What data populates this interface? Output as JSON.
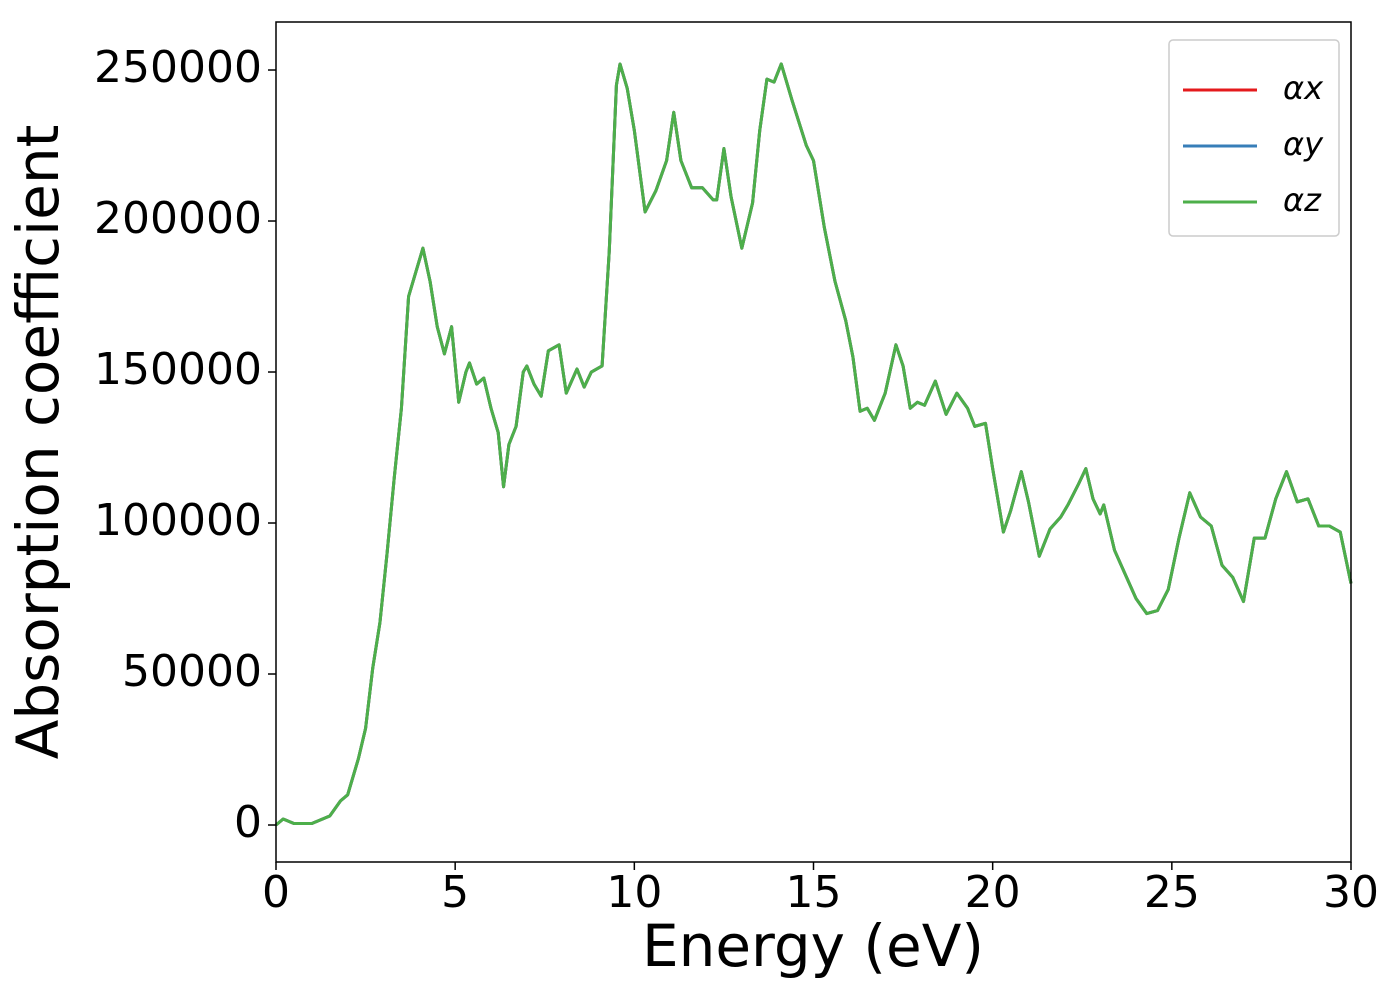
{
  "chart_data": {
    "type": "line",
    "xlabel": "Energy (eV)",
    "ylabel": "Absorption coefficient",
    "x": [
      0,
      0.2,
      0.5,
      1.0,
      1.5,
      1.8,
      2.0,
      2.3,
      2.5,
      2.7,
      2.9,
      3.1,
      3.3,
      3.5,
      3.7,
      3.9,
      4.1,
      4.3,
      4.5,
      4.7,
      4.9,
      5.1,
      5.3,
      5.4,
      5.6,
      5.8,
      6.0,
      6.2,
      6.35,
      6.5,
      6.7,
      6.9,
      7.0,
      7.2,
      7.4,
      7.6,
      7.9,
      8.1,
      8.4,
      8.6,
      8.8,
      9.1,
      9.3,
      9.5,
      9.6,
      9.8,
      10.0,
      10.3,
      10.6,
      10.9,
      11.1,
      11.3,
      11.6,
      11.9,
      12.2,
      12.3,
      12.5,
      12.7,
      13.0,
      13.3,
      13.5,
      13.7,
      13.9,
      14.1,
      14.4,
      14.8,
      15.0,
      15.3,
      15.6,
      15.9,
      16.1,
      16.3,
      16.5,
      16.7,
      17.0,
      17.3,
      17.5,
      17.7,
      17.9,
      18.1,
      18.4,
      18.7,
      19.0,
      19.3,
      19.5,
      19.8,
      20.0,
      20.3,
      20.5,
      20.8,
      21.0,
      21.3,
      21.6,
      21.9,
      22.1,
      22.4,
      22.6,
      22.8,
      23.0,
      23.1,
      23.4,
      23.7,
      24.0,
      24.3,
      24.6,
      24.9,
      25.2,
      25.5,
      25.8,
      26.1,
      26.4,
      26.7,
      27.0,
      27.3,
      27.6,
      27.9,
      28.2,
      28.5,
      28.8,
      29.1,
      29.4,
      29.7,
      30.0
    ],
    "series": [
      {
        "name": "αx",
        "color": "#e41a1c",
        "values": [
          0,
          2000,
          500,
          500,
          3000,
          8000,
          10000,
          22000,
          32000,
          52000,
          67000,
          90000,
          115000,
          138000,
          175000,
          183000,
          191000,
          180000,
          165000,
          156000,
          165000,
          140000,
          150000,
          153000,
          146000,
          148000,
          138000,
          130000,
          112000,
          126000,
          132000,
          150000,
          152000,
          146000,
          142000,
          157000,
          159000,
          143000,
          151000,
          145000,
          150000,
          152000,
          190000,
          245000,
          252000,
          244000,
          230000,
          203000,
          210000,
          220000,
          236000,
          220000,
          211000,
          211000,
          207000,
          207000,
          224000,
          208000,
          191000,
          206000,
          230000,
          247000,
          246000,
          252000,
          240000,
          225000,
          220000,
          198000,
          180000,
          167000,
          155000,
          137000,
          138000,
          134000,
          143000,
          159000,
          152000,
          138000,
          140000,
          139000,
          147000,
          136000,
          143000,
          138000,
          132000,
          133000,
          118000,
          97000,
          104000,
          117000,
          107000,
          89000,
          98000,
          102000,
          106000,
          113000,
          118000,
          108000,
          103000,
          106000,
          91000,
          83000,
          75000,
          70000,
          71000,
          78000,
          95000,
          110000,
          102000,
          99000,
          86000,
          82000,
          74000,
          95000,
          95000,
          108000,
          117000,
          107000,
          108000,
          99000,
          99000,
          97000,
          80000
        ]
      },
      {
        "name": "αy",
        "color": "#377eb8",
        "values": [
          0,
          2000,
          500,
          500,
          3000,
          8000,
          10000,
          22000,
          32000,
          52000,
          67000,
          90000,
          115000,
          138000,
          175000,
          183000,
          191000,
          180000,
          165000,
          156000,
          165000,
          140000,
          150000,
          153000,
          146000,
          148000,
          138000,
          130000,
          112000,
          126000,
          132000,
          150000,
          152000,
          146000,
          142000,
          157000,
          159000,
          143000,
          151000,
          145000,
          150000,
          152000,
          190000,
          245000,
          252000,
          244000,
          230000,
          203000,
          210000,
          220000,
          236000,
          220000,
          211000,
          211000,
          207000,
          207000,
          224000,
          208000,
          191000,
          206000,
          230000,
          247000,
          246000,
          252000,
          240000,
          225000,
          220000,
          198000,
          180000,
          167000,
          155000,
          137000,
          138000,
          134000,
          143000,
          159000,
          152000,
          138000,
          140000,
          139000,
          147000,
          136000,
          143000,
          138000,
          132000,
          133000,
          118000,
          97000,
          104000,
          117000,
          107000,
          89000,
          98000,
          102000,
          106000,
          113000,
          118000,
          108000,
          103000,
          106000,
          91000,
          83000,
          75000,
          70000,
          71000,
          78000,
          95000,
          110000,
          102000,
          99000,
          86000,
          82000,
          74000,
          95000,
          95000,
          108000,
          117000,
          107000,
          108000,
          99000,
          99000,
          97000,
          80000
        ]
      },
      {
        "name": "αz",
        "color": "#4daf4a",
        "values": [
          0,
          2000,
          500,
          500,
          3000,
          8000,
          10000,
          22000,
          32000,
          52000,
          67000,
          90000,
          115000,
          138000,
          175000,
          183000,
          191000,
          180000,
          165000,
          156000,
          165000,
          140000,
          150000,
          153000,
          146000,
          148000,
          138000,
          130000,
          112000,
          126000,
          132000,
          150000,
          152000,
          146000,
          142000,
          157000,
          159000,
          143000,
          151000,
          145000,
          150000,
          152000,
          190000,
          245000,
          252000,
          244000,
          230000,
          203000,
          210000,
          220000,
          236000,
          220000,
          211000,
          211000,
          207000,
          207000,
          224000,
          208000,
          191000,
          206000,
          230000,
          247000,
          246000,
          252000,
          240000,
          225000,
          220000,
          198000,
          180000,
          167000,
          155000,
          137000,
          138000,
          134000,
          143000,
          159000,
          152000,
          138000,
          140000,
          139000,
          147000,
          136000,
          143000,
          138000,
          132000,
          133000,
          118000,
          97000,
          104000,
          117000,
          107000,
          89000,
          98000,
          102000,
          106000,
          113000,
          118000,
          108000,
          103000,
          106000,
          91000,
          83000,
          75000,
          70000,
          71000,
          78000,
          95000,
          110000,
          102000,
          99000,
          86000,
          82000,
          74000,
          95000,
          95000,
          108000,
          117000,
          107000,
          108000,
          99000,
          99000,
          97000,
          80000
        ]
      }
    ],
    "xlim": [
      0,
      30
    ],
    "xticks": [
      0,
      5,
      10,
      15,
      20,
      25,
      30
    ],
    "ylim": [
      -12250,
      265900
    ],
    "yticks": [
      0,
      50000,
      100000,
      150000,
      200000,
      250000
    ],
    "grid": false,
    "legend": "upper right"
  }
}
